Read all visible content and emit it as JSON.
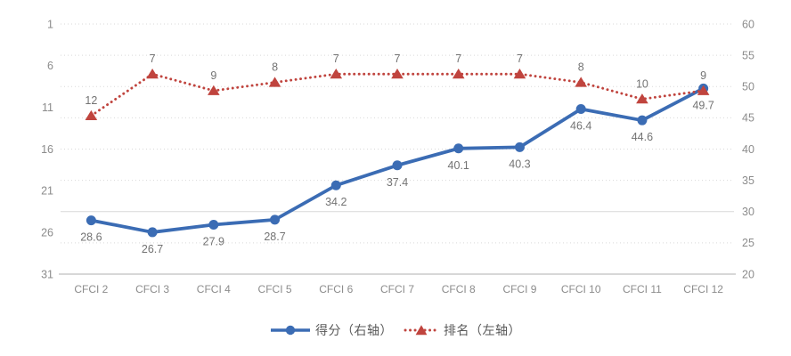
{
  "chart_data": {
    "type": "line",
    "title": "",
    "categories": [
      "CFCI 2",
      "CFCI 3",
      "CFCI 4",
      "CFCI 5",
      "CFCI 6",
      "CFCI 7",
      "CFCI 8",
      "CFCI 9",
      "CFCI 10",
      "CFCI 11",
      "CFCI 12"
    ],
    "series": [
      {
        "name": "得分（右轴）",
        "axis": "right",
        "color": "#3b6cb4",
        "marker": "circle",
        "line_style": "solid",
        "label_position": "below",
        "values": [
          28.6,
          26.7,
          27.9,
          28.7,
          34.2,
          37.4,
          40.1,
          40.3,
          46.4,
          44.6,
          49.7
        ]
      },
      {
        "name": "排名（左轴）",
        "axis": "left",
        "color": "#c0443e",
        "marker": "triangle",
        "line_style": "dotted",
        "label_position": "above",
        "values": [
          12,
          7,
          9,
          8,
          7,
          7,
          7,
          7,
          8,
          10,
          9
        ]
      }
    ],
    "left_axis": {
      "ticks": [
        1,
        6,
        11,
        16,
        21,
        26,
        31
      ],
      "min": 1,
      "max": 31,
      "inverted": true
    },
    "right_axis": {
      "ticks": [
        60,
        55,
        50,
        45,
        40,
        35,
        30,
        25,
        20
      ],
      "min": 20,
      "max": 60
    },
    "legend": {
      "position": "bottom",
      "entries": [
        "得分（右轴）",
        "排名（左轴）"
      ]
    },
    "grid": {
      "horizontal": true,
      "vertical": false,
      "style": "dotted"
    }
  },
  "colors": {
    "score_line": "#3b6cb4",
    "rank_line": "#c0443e",
    "gridline": "#d9d9d9",
    "axis_line": "#bfbfbf",
    "axis_text": "#8c8c8c",
    "data_label_text": "#737373",
    "legend_text": "#595959",
    "background": "#ffffff"
  }
}
